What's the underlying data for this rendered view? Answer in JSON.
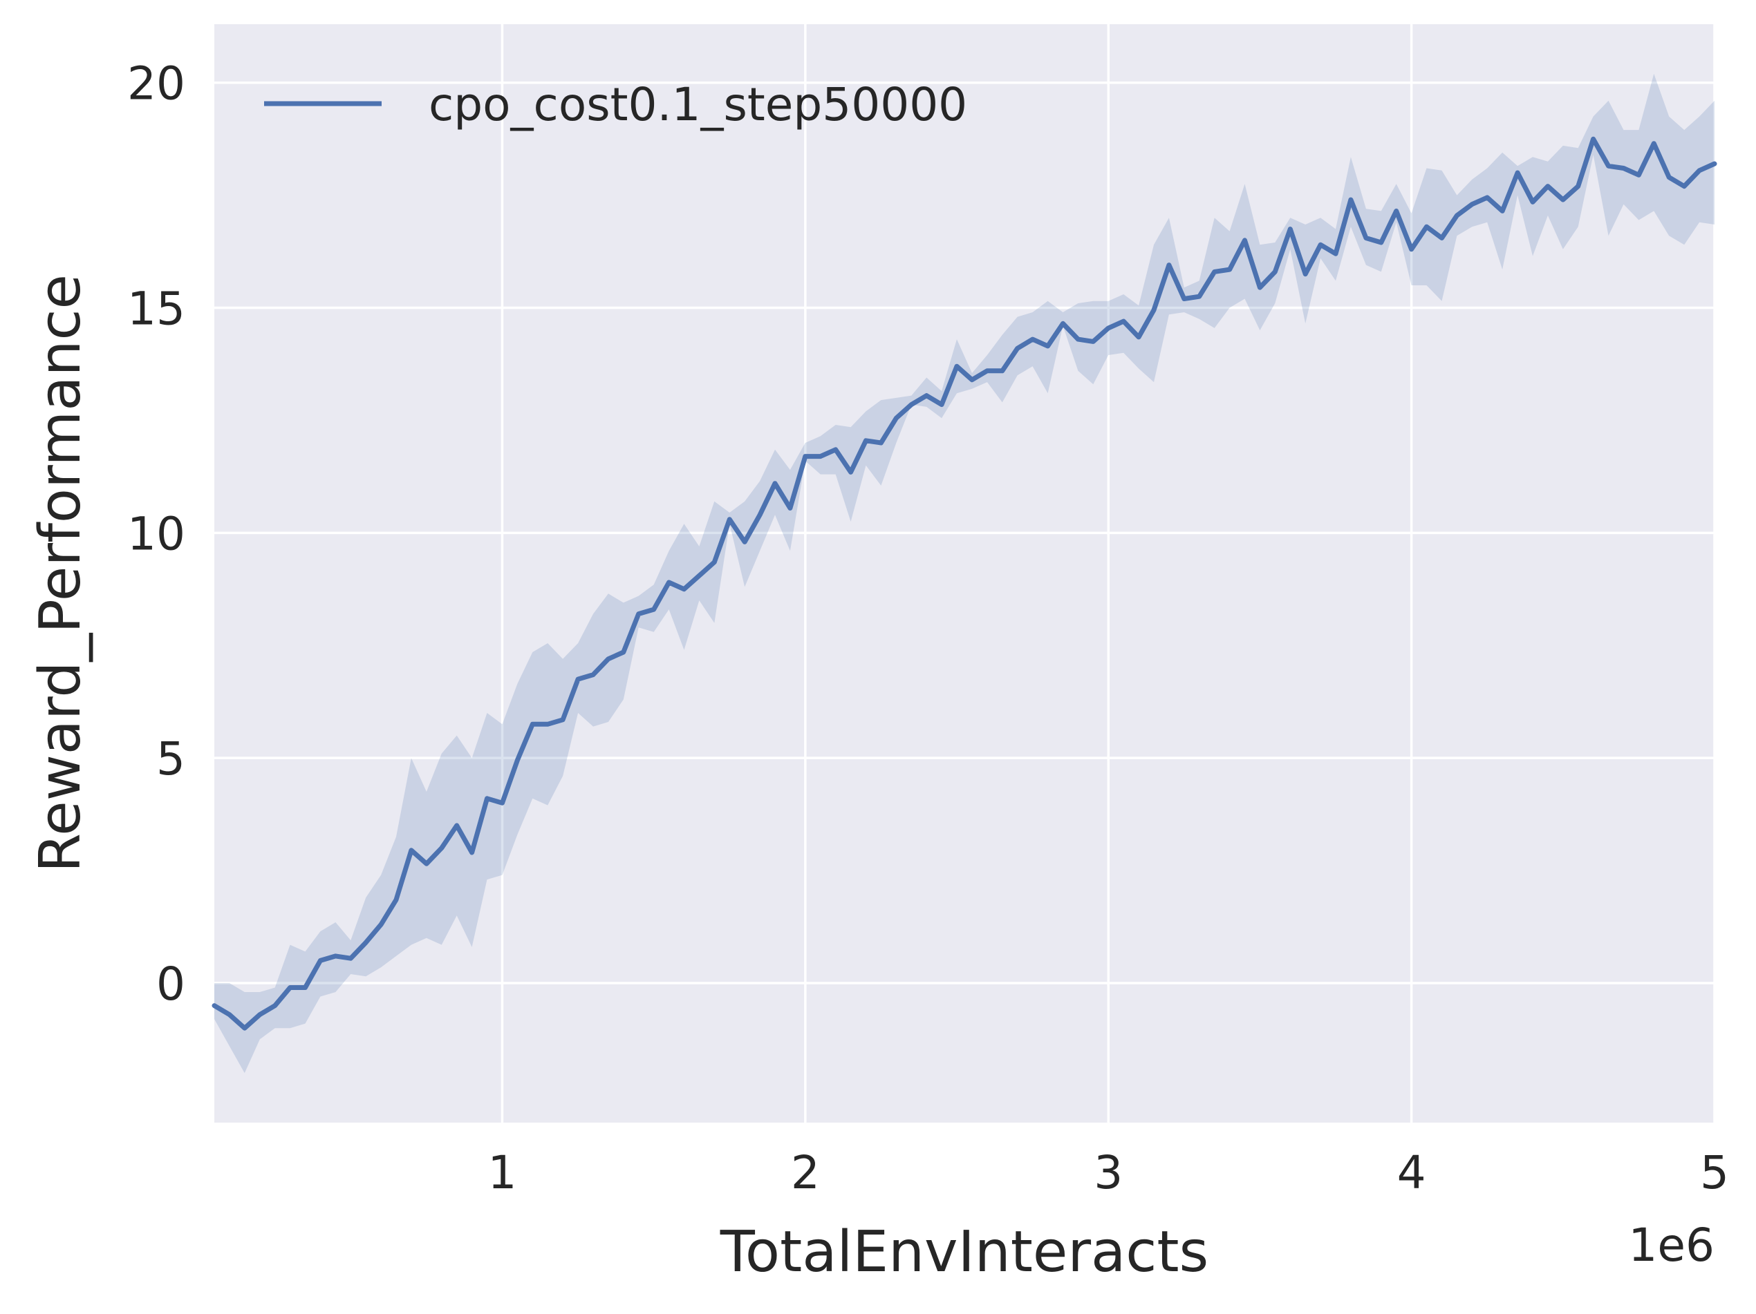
{
  "chart_data": {
    "type": "line",
    "title": "",
    "xlabel": "TotalEnvInteracts",
    "ylabel": "Reward_Performance",
    "x_offset_label": "1e6",
    "xlim": [
      50000,
      5000000
    ],
    "ylim": [
      -3.1,
      21.3
    ],
    "x_scale": 1000000,
    "xticks": [
      1,
      2,
      3,
      4,
      5
    ],
    "xtick_labels": [
      "1",
      "2",
      "3",
      "4",
      "5"
    ],
    "yticks": [
      0,
      5,
      10,
      15,
      20
    ],
    "ytick_labels": [
      "0",
      "5",
      "10",
      "15",
      "20"
    ],
    "grid": true,
    "legend": {
      "position": "top-left"
    },
    "colors": {
      "line": "#4c72b0",
      "band": "#4c72b0",
      "background": "#eaeaf2",
      "grid": "#ffffff"
    },
    "x": [
      50000,
      100000,
      150000,
      200000,
      250000,
      300000,
      350000,
      400000,
      450000,
      500000,
      550000,
      600000,
      650000,
      700000,
      750000,
      800000,
      850000,
      900000,
      950000,
      1000000,
      1050000,
      1100000,
      1150000,
      1200000,
      1250000,
      1300000,
      1350000,
      1400000,
      1450000,
      1500000,
      1550000,
      1600000,
      1650000,
      1700000,
      1750000,
      1800000,
      1850000,
      1900000,
      1950000,
      2000000,
      2050000,
      2100000,
      2150000,
      2200000,
      2250000,
      2300000,
      2350000,
      2400000,
      2450000,
      2500000,
      2550000,
      2600000,
      2650000,
      2700000,
      2750000,
      2800000,
      2850000,
      2900000,
      2950000,
      3000000,
      3050000,
      3100000,
      3150000,
      3200000,
      3250000,
      3300000,
      3350000,
      3400000,
      3450000,
      3500000,
      3550000,
      3600000,
      3650000,
      3700000,
      3750000,
      3800000,
      3850000,
      3900000,
      3950000,
      4000000,
      4050000,
      4100000,
      4150000,
      4200000,
      4250000,
      4300000,
      4350000,
      4400000,
      4450000,
      4500000,
      4550000,
      4600000,
      4650000,
      4700000,
      4750000,
      4800000,
      4850000,
      4900000,
      4950000,
      5000000
    ],
    "series": [
      {
        "name": "cpo_cost0.1_step50000",
        "values": [
          -0.5,
          -0.7,
          -1.0,
          -0.7,
          -0.5,
          -0.1,
          -0.1,
          0.5,
          0.6,
          0.55,
          0.9,
          1.3,
          1.85,
          2.95,
          2.65,
          3.0,
          3.5,
          2.9,
          4.1,
          4.0,
          4.95,
          5.75,
          5.75,
          5.85,
          6.75,
          6.85,
          7.2,
          7.35,
          8.2,
          8.3,
          8.9,
          8.75,
          9.05,
          9.35,
          10.3,
          9.8,
          10.4,
          11.1,
          10.55,
          11.7,
          11.7,
          11.85,
          11.35,
          12.05,
          12.0,
          12.55,
          12.85,
          13.05,
          12.85,
          13.7,
          13.4,
          13.6,
          13.6,
          14.1,
          14.3,
          14.15,
          14.65,
          14.3,
          14.25,
          14.55,
          14.7,
          14.35,
          14.95,
          15.95,
          15.2,
          15.25,
          15.8,
          15.85,
          16.5,
          15.45,
          15.8,
          16.75,
          15.75,
          16.4,
          16.2,
          17.4,
          16.55,
          16.45,
          17.15,
          16.3,
          16.8,
          16.55,
          17.05,
          17.3,
          17.45,
          17.15,
          18.0,
          17.35,
          17.7,
          17.4,
          17.7,
          18.75,
          18.15,
          18.1,
          17.95,
          18.65,
          17.9,
          17.7,
          18.05,
          18.2
        ],
        "lower": [
          -0.8,
          -1.4,
          -2.0,
          -1.25,
          -1.0,
          -1.0,
          -0.9,
          -0.3,
          -0.2,
          0.2,
          0.15,
          0.35,
          0.6,
          0.85,
          1.0,
          0.85,
          1.5,
          0.8,
          2.3,
          2.4,
          3.3,
          4.1,
          3.95,
          4.6,
          6.0,
          5.7,
          5.8,
          6.3,
          7.9,
          7.8,
          8.3,
          7.4,
          8.5,
          8.0,
          10.2,
          8.8,
          9.6,
          10.4,
          9.6,
          11.6,
          11.3,
          11.3,
          10.25,
          11.5,
          11.05,
          12.0,
          12.85,
          12.8,
          12.55,
          13.1,
          13.2,
          13.35,
          12.9,
          13.5,
          13.7,
          13.1,
          14.6,
          13.6,
          13.3,
          13.95,
          14.0,
          13.65,
          13.35,
          14.85,
          14.9,
          14.75,
          14.55,
          15.0,
          15.2,
          14.5,
          15.1,
          16.3,
          14.65,
          16.1,
          15.6,
          16.8,
          15.95,
          15.8,
          16.9,
          15.5,
          15.5,
          15.15,
          16.6,
          16.8,
          16.9,
          15.85,
          17.5,
          16.15,
          17.05,
          16.3,
          16.8,
          18.4,
          16.6,
          17.3,
          16.95,
          17.15,
          16.6,
          16.4,
          16.9,
          16.85
        ],
        "upper": [
          0.0,
          0.0,
          -0.2,
          -0.2,
          -0.1,
          0.85,
          0.7,
          1.15,
          1.35,
          0.95,
          1.9,
          2.4,
          3.25,
          5.0,
          4.25,
          5.1,
          5.5,
          5.0,
          6.0,
          5.75,
          6.65,
          7.35,
          7.55,
          7.2,
          7.55,
          8.2,
          8.65,
          8.45,
          8.6,
          8.85,
          9.6,
          10.2,
          9.7,
          10.7,
          10.45,
          10.7,
          11.15,
          11.85,
          11.4,
          12.0,
          12.15,
          12.4,
          12.35,
          12.7,
          12.95,
          13.0,
          13.05,
          13.45,
          13.15,
          14.3,
          13.55,
          13.95,
          14.4,
          14.8,
          14.9,
          15.15,
          14.9,
          15.1,
          15.15,
          15.15,
          15.3,
          15.05,
          16.4,
          17.0,
          15.45,
          15.6,
          17.0,
          16.7,
          17.75,
          16.4,
          16.45,
          17.0,
          16.85,
          17.0,
          16.75,
          18.35,
          17.2,
          17.15,
          17.75,
          17.1,
          18.1,
          18.05,
          17.5,
          17.85,
          18.1,
          18.45,
          18.15,
          18.35,
          18.25,
          18.6,
          18.55,
          19.25,
          19.6,
          18.95,
          18.95,
          20.2,
          19.25,
          18.95,
          19.25,
          19.6
        ]
      }
    ]
  }
}
